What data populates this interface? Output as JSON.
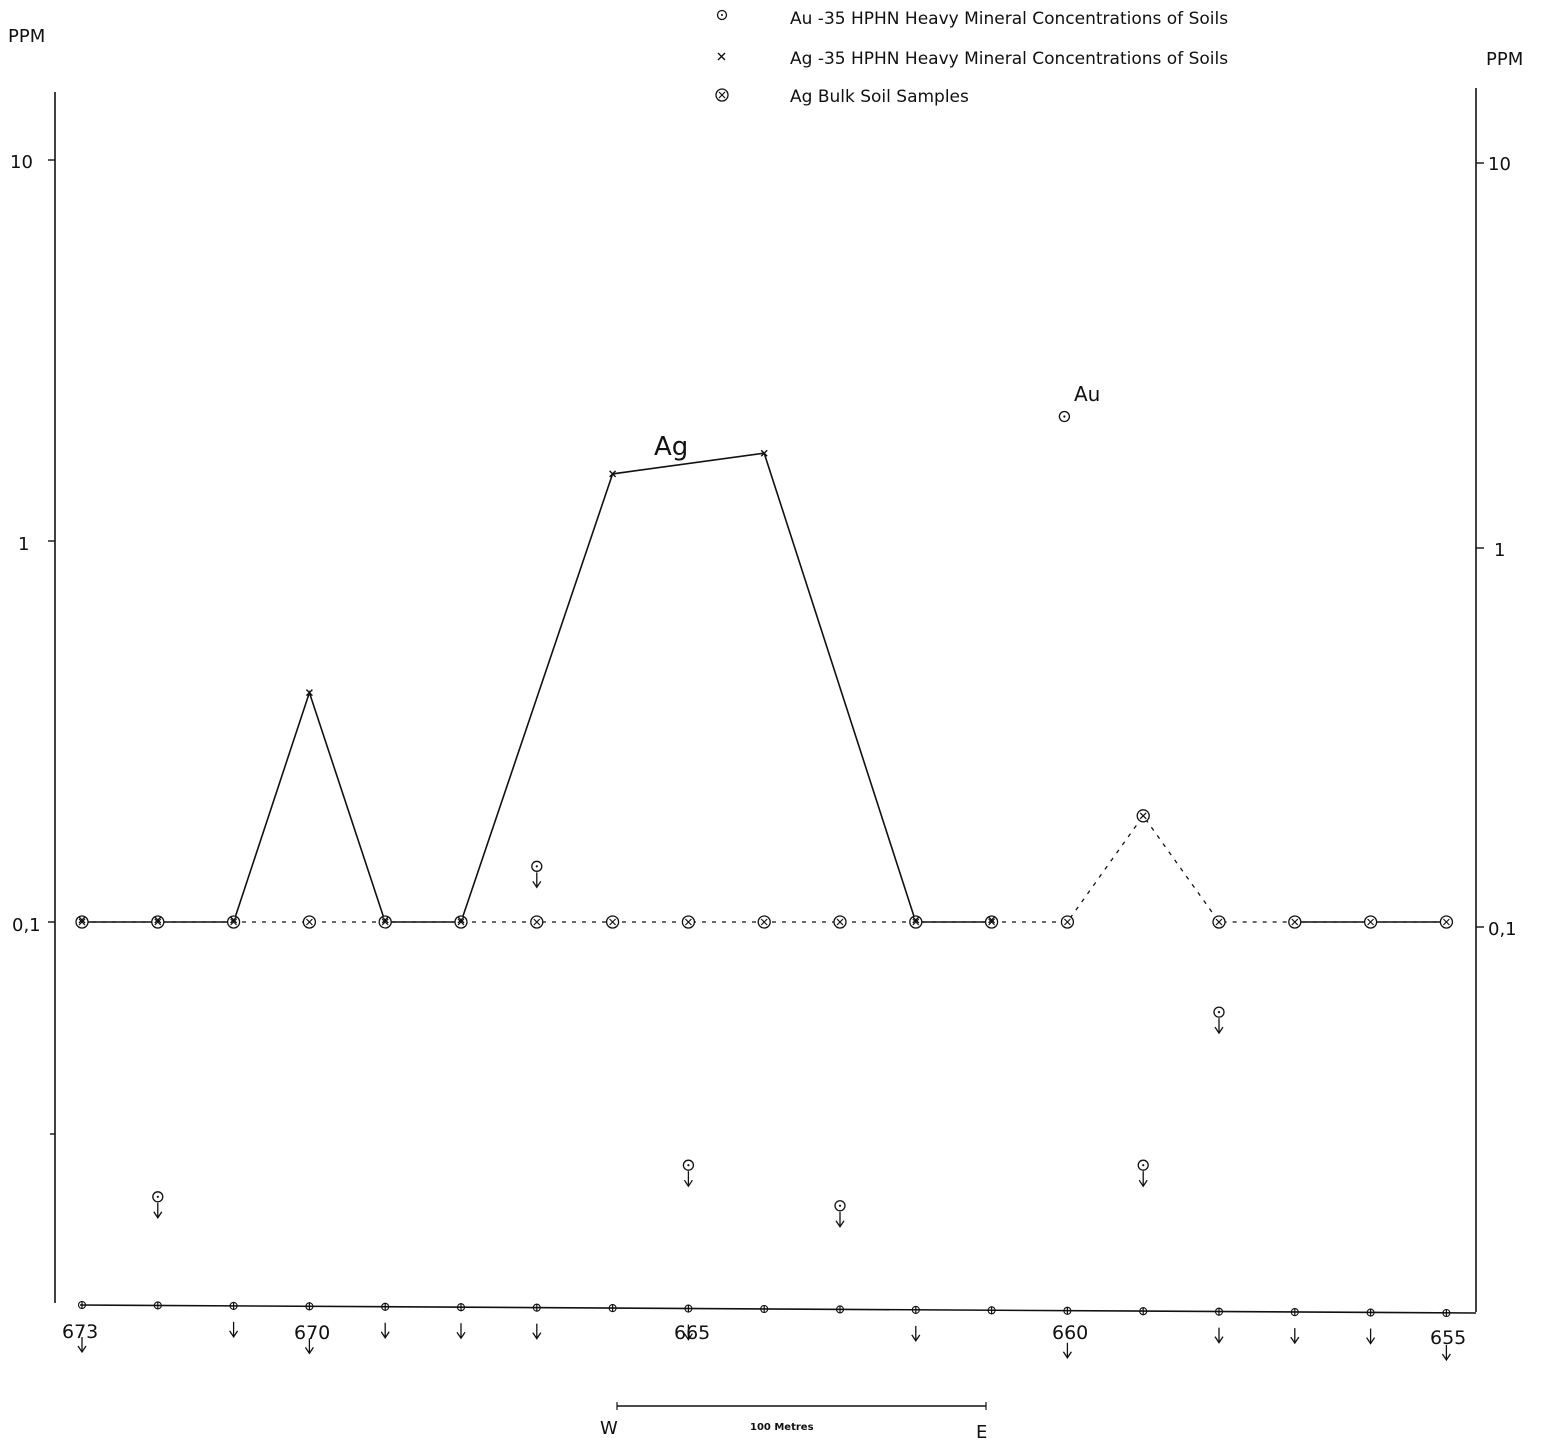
{
  "legend": [
    {
      "symbol": "dot-circle",
      "label": "Au -35 HPHN Heavy Mineral Concentrations of Soils"
    },
    {
      "symbol": "x",
      "label": "Ag -35 HPHN Heavy Mineral Concentrations of Soils"
    },
    {
      "symbol": "circled-x",
      "label": "Ag Bulk Soil Samples"
    }
  ],
  "axes": {
    "left_unit": "PPM",
    "right_unit": "PPM",
    "left_ticks": [
      "10",
      "1",
      "0,1"
    ],
    "right_ticks": [
      "10",
      "1",
      "0,1"
    ],
    "x_station_labels": [
      "673",
      "670",
      "665",
      "660",
      "655"
    ]
  },
  "scale_bar": {
    "label": "100 Metres",
    "west": "W",
    "east": "E"
  },
  "series_labels": {
    "ag": "Ag",
    "au": "Au"
  },
  "chart_data": {
    "type": "line",
    "y_scale": "log",
    "ylim": [
      0.017,
      15
    ],
    "x_axis": "sample station",
    "x": [
      673,
      672,
      671,
      670,
      669,
      668,
      667,
      666,
      665,
      664,
      663,
      662,
      661,
      660,
      659,
      658,
      657,
      656,
      655
    ],
    "series": [
      {
        "name": "Ag -35 HPHN Heavy Mineral Concentrations of Soils",
        "marker": "x",
        "line": "solid",
        "points": [
          [
            673,
            0.1
          ],
          [
            672,
            0.1
          ],
          [
            671,
            0.1
          ],
          [
            670,
            0.4
          ],
          [
            669,
            0.1
          ],
          [
            668,
            0.1
          ],
          [
            666,
            1.5
          ],
          [
            664,
            1.7
          ],
          [
            662,
            0.1
          ],
          [
            661,
            0.1
          ]
        ]
      },
      {
        "name": "Ag Bulk Soil Samples",
        "marker": "circled-x",
        "line": "dashed",
        "points": [
          [
            673,
            0.1
          ],
          [
            672,
            0.1
          ],
          [
            671,
            0.1
          ],
          [
            670,
            0.1
          ],
          [
            669,
            0.1
          ],
          [
            668,
            0.1
          ],
          [
            667,
            0.1
          ],
          [
            666,
            0.1
          ],
          [
            665,
            0.1
          ],
          [
            664,
            0.1
          ],
          [
            663,
            0.1
          ],
          [
            662,
            0.1
          ],
          [
            661,
            0.1
          ],
          [
            660,
            0.1
          ],
          [
            659,
            0.19
          ],
          [
            658,
            0.1
          ],
          [
            657,
            0.1
          ],
          [
            656,
            0.1
          ],
          [
            655,
            0.1
          ]
        ]
      },
      {
        "name": "Au -35 HPHN Heavy Mineral Concentrations of Soils",
        "marker": "dot-circle",
        "line": "none",
        "points": [
          [
            660,
            2.2
          ]
        ],
        "below_detection": [
          [
            672,
            0.019
          ],
          [
            667,
            0.14
          ],
          [
            665,
            0.023
          ],
          [
            663,
            0.018
          ],
          [
            659,
            0.023
          ],
          [
            658,
            0.058
          ]
        ]
      }
    ]
  }
}
